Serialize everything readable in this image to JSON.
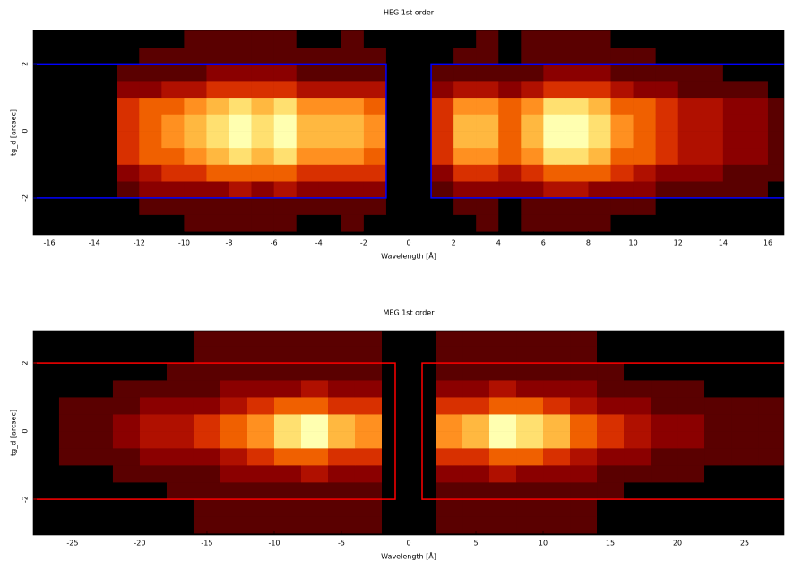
{
  "chart_data": [
    {
      "type": "heatmap",
      "title": "HEG 1st order",
      "xlabel": "Wavelength [Å]",
      "ylabel": "tg_d [arcsec]",
      "xlim": [
        -16.72,
        16.72
      ],
      "ylim": [
        -3.1,
        3.0
      ],
      "xticks": [
        -16,
        -14,
        -12,
        -10,
        -8,
        -6,
        -4,
        -2,
        0,
        2,
        4,
        6,
        8,
        10,
        12,
        14,
        16
      ],
      "yticks": [
        -2,
        0,
        2
      ],
      "background": "#000000",
      "colorscale": [
        "#000000",
        "#5a0000",
        "#8b0000",
        "#b01000",
        "#d83000",
        "#f06000",
        "#ff9020",
        "#ffb840",
        "#ffe070",
        "#ffffb0"
      ],
      "x_bins": [
        -17,
        -16,
        -15,
        -14,
        -13,
        -12,
        -11,
        -10,
        -9,
        -8,
        -7,
        -6,
        -5,
        -4,
        -3,
        -2,
        -1,
        0,
        1,
        2,
        3,
        4,
        5,
        6,
        7,
        8,
        9,
        10,
        11,
        12,
        13,
        14,
        15,
        16,
        17
      ],
      "y_bins": [
        -3,
        -2.5,
        -2,
        -1.5,
        -1,
        -0.5,
        0,
        0.5,
        1,
        1.5,
        2,
        2.5,
        3
      ],
      "values": [
        [
          0,
          0,
          0,
          0,
          0,
          0,
          0,
          1,
          1,
          1,
          1,
          1,
          0,
          0,
          1,
          0,
          0,
          0,
          0,
          0,
          1,
          0,
          1,
          1,
          1,
          1,
          0,
          0,
          0,
          0,
          0,
          0,
          0,
          0
        ],
        [
          0,
          0,
          0,
          0,
          0,
          1,
          1,
          1,
          1,
          1,
          1,
          1,
          1,
          1,
          1,
          1,
          0,
          0,
          0,
          1,
          1,
          0,
          1,
          1,
          1,
          1,
          1,
          1,
          0,
          0,
          0,
          0,
          0,
          0
        ],
        [
          0,
          0,
          0,
          0,
          1,
          2,
          2,
          2,
          2,
          3,
          2,
          3,
          2,
          2,
          2,
          2,
          0,
          0,
          1,
          2,
          2,
          2,
          2,
          3,
          3,
          2,
          2,
          2,
          1,
          1,
          1,
          1,
          1,
          0
        ],
        [
          0,
          0,
          0,
          0,
          2,
          3,
          4,
          4,
          5,
          5,
          5,
          5,
          4,
          4,
          4,
          4,
          0,
          0,
          2,
          4,
          4,
          3,
          4,
          5,
          5,
          5,
          4,
          3,
          2,
          2,
          2,
          1,
          1,
          1
        ],
        [
          0,
          0,
          0,
          0,
          4,
          5,
          5,
          6,
          7,
          8,
          7,
          8,
          6,
          6,
          6,
          5,
          0,
          0,
          4,
          6,
          6,
          5,
          6,
          8,
          8,
          7,
          5,
          5,
          4,
          3,
          3,
          2,
          2,
          1
        ],
        [
          0,
          0,
          0,
          0,
          4,
          5,
          6,
          7,
          8,
          9,
          8,
          9,
          7,
          7,
          7,
          6,
          0,
          0,
          4,
          7,
          7,
          5,
          7,
          9,
          9,
          8,
          6,
          5,
          4,
          3,
          3,
          2,
          2,
          1
        ],
        [
          0,
          0,
          0,
          0,
          4,
          5,
          6,
          7,
          8,
          9,
          8,
          9,
          7,
          7,
          7,
          6,
          0,
          0,
          4,
          7,
          7,
          5,
          7,
          9,
          9,
          8,
          6,
          5,
          4,
          3,
          3,
          2,
          2,
          1
        ],
        [
          0,
          0,
          0,
          0,
          4,
          5,
          5,
          6,
          7,
          8,
          7,
          8,
          6,
          6,
          6,
          5,
          0,
          0,
          4,
          6,
          6,
          5,
          6,
          8,
          8,
          7,
          5,
          5,
          4,
          3,
          3,
          2,
          2,
          1
        ],
        [
          0,
          0,
          0,
          0,
          2,
          2,
          3,
          3,
          4,
          4,
          4,
          4,
          3,
          3,
          3,
          3,
          0,
          0,
          2,
          3,
          3,
          2,
          3,
          4,
          4,
          4,
          3,
          2,
          2,
          1,
          1,
          1,
          1,
          0
        ],
        [
          0,
          0,
          0,
          0,
          1,
          1,
          1,
          1,
          2,
          2,
          2,
          2,
          1,
          1,
          1,
          1,
          0,
          0,
          1,
          1,
          1,
          1,
          1,
          2,
          2,
          2,
          1,
          1,
          1,
          1,
          1,
          0,
          0,
          0
        ],
        [
          0,
          0,
          0,
          0,
          0,
          1,
          1,
          1,
          1,
          1,
          1,
          1,
          1,
          1,
          1,
          1,
          0,
          0,
          0,
          1,
          1,
          0,
          1,
          1,
          1,
          1,
          1,
          1,
          0,
          0,
          0,
          0,
          0,
          0
        ],
        [
          0,
          0,
          0,
          0,
          0,
          0,
          0,
          1,
          1,
          1,
          1,
          1,
          0,
          0,
          1,
          0,
          0,
          0,
          0,
          0,
          1,
          0,
          1,
          1,
          1,
          1,
          0,
          0,
          0,
          0,
          0,
          0,
          0,
          0
        ]
      ],
      "regions": {
        "color": "#0000ff",
        "boxes": [
          {
            "x": [
              -17,
              -1
            ],
            "y": [
              -2,
              2
            ]
          },
          {
            "x": [
              1,
              17
            ],
            "y": [
              -2,
              2
            ]
          }
        ]
      }
    },
    {
      "type": "heatmap",
      "title": "MEG 1st order",
      "xlabel": "Wavelength [Å]",
      "ylabel": "tg_d [arcsec]",
      "xlim": [
        -27.93,
        27.93
      ],
      "ylim": [
        -3.05,
        2.95
      ],
      "xticks": [
        -25,
        -20,
        -15,
        -10,
        -5,
        0,
        5,
        10,
        15,
        20,
        25
      ],
      "yticks": [
        -2,
        0,
        2
      ],
      "background": "#000000",
      "colorscale": [
        "#000000",
        "#5a0000",
        "#8b0000",
        "#b01000",
        "#d83000",
        "#f06000",
        "#ff9020",
        "#ffb840",
        "#ffe070",
        "#ffffb0"
      ],
      "x_bins": [
        -28,
        -26,
        -24,
        -22,
        -20,
        -18,
        -16,
        -14,
        -12,
        -10,
        -8,
        -6,
        -4,
        -2,
        0,
        2,
        4,
        6,
        8,
        10,
        12,
        14,
        16,
        18,
        20,
        22,
        24,
        26,
        28
      ],
      "y_bins": [
        -3,
        -2.5,
        -2,
        -1.5,
        -1,
        -0.5,
        0,
        0.5,
        1,
        1.5,
        2,
        2.5,
        3
      ],
      "values": [
        [
          0,
          0,
          0,
          0,
          0,
          0,
          1,
          1,
          1,
          1,
          1,
          1,
          1,
          0,
          0,
          1,
          1,
          1,
          1,
          1,
          1,
          0,
          0,
          0,
          0,
          0,
          0,
          0
        ],
        [
          0,
          0,
          0,
          0,
          0,
          0,
          1,
          1,
          1,
          1,
          1,
          1,
          1,
          0,
          0,
          1,
          1,
          1,
          1,
          1,
          1,
          0,
          0,
          0,
          0,
          0,
          0,
          0
        ],
        [
          0,
          0,
          0,
          0,
          0,
          1,
          1,
          1,
          1,
          1,
          1,
          1,
          1,
          0,
          0,
          1,
          1,
          1,
          1,
          1,
          1,
          1,
          0,
          0,
          0,
          0,
          0,
          0
        ],
        [
          0,
          0,
          0,
          1,
          1,
          1,
          1,
          2,
          2,
          2,
          3,
          2,
          2,
          0,
          0,
          2,
          2,
          3,
          2,
          2,
          2,
          1,
          1,
          1,
          1,
          0,
          0,
          0
        ],
        [
          0,
          1,
          1,
          1,
          2,
          2,
          2,
          3,
          4,
          5,
          5,
          4,
          4,
          0,
          0,
          4,
          4,
          5,
          5,
          4,
          3,
          2,
          2,
          1,
          1,
          1,
          1,
          1
        ],
        [
          0,
          1,
          1,
          2,
          3,
          3,
          4,
          5,
          6,
          8,
          9,
          7,
          6,
          0,
          0,
          6,
          7,
          9,
          8,
          7,
          5,
          4,
          3,
          2,
          2,
          1,
          1,
          1
        ],
        [
          0,
          1,
          1,
          2,
          3,
          3,
          4,
          5,
          6,
          8,
          9,
          7,
          6,
          0,
          0,
          6,
          7,
          9,
          8,
          7,
          5,
          4,
          3,
          2,
          2,
          1,
          1,
          1
        ],
        [
          0,
          1,
          1,
          1,
          2,
          2,
          2,
          3,
          4,
          5,
          5,
          4,
          4,
          0,
          0,
          4,
          4,
          5,
          5,
          4,
          3,
          2,
          2,
          1,
          1,
          1,
          1,
          1
        ],
        [
          0,
          0,
          0,
          1,
          1,
          1,
          1,
          2,
          2,
          2,
          3,
          2,
          2,
          0,
          0,
          2,
          2,
          3,
          2,
          2,
          2,
          1,
          1,
          1,
          1,
          0,
          0,
          0
        ],
        [
          0,
          0,
          0,
          0,
          0,
          1,
          1,
          1,
          1,
          1,
          1,
          1,
          1,
          0,
          0,
          1,
          1,
          1,
          1,
          1,
          1,
          1,
          0,
          0,
          0,
          0,
          0,
          0
        ],
        [
          0,
          0,
          0,
          0,
          0,
          0,
          1,
          1,
          1,
          1,
          1,
          1,
          1,
          0,
          0,
          1,
          1,
          1,
          1,
          1,
          1,
          0,
          0,
          0,
          0,
          0,
          0,
          0
        ],
        [
          0,
          0,
          0,
          0,
          0,
          0,
          1,
          1,
          1,
          1,
          1,
          1,
          1,
          0,
          0,
          1,
          1,
          1,
          1,
          1,
          1,
          0,
          0,
          0,
          0,
          0,
          0,
          0
        ]
      ],
      "regions": {
        "color": "#ff0000",
        "boxes": [
          {
            "x": [
              -29,
              -1
            ],
            "y": [
              -2,
              2
            ]
          },
          {
            "x": [
              1,
              29
            ],
            "y": [
              -2,
              2
            ]
          }
        ]
      }
    }
  ]
}
